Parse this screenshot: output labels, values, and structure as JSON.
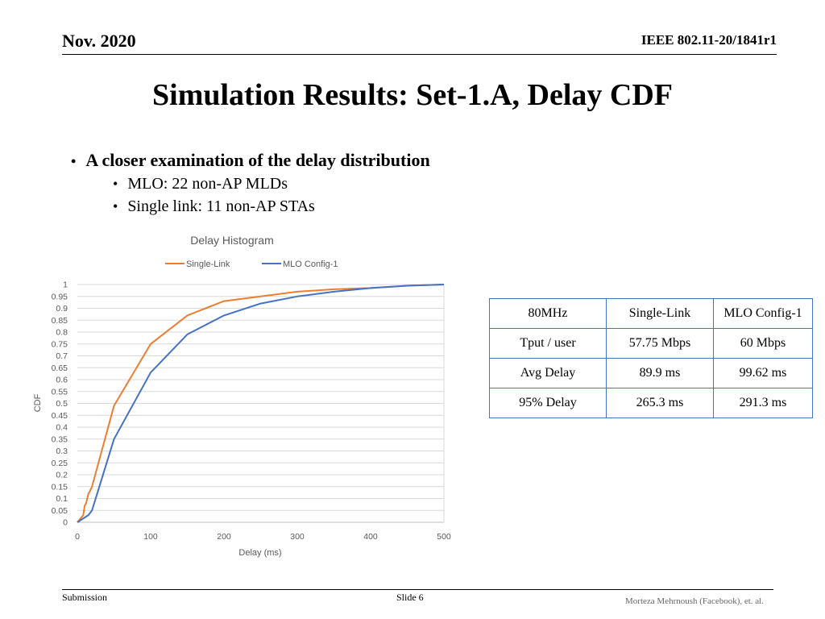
{
  "header": {
    "date": "Nov. 2020",
    "doc_id": "IEEE 802.11-20/1841r1"
  },
  "title": "Simulation Results: Set-1.A, Delay CDF",
  "bullets": {
    "main": "A closer examination of the delay distribution",
    "sub": [
      "MLO: 22 non-AP MLDs",
      "Single link: 11 non-AP STAs"
    ]
  },
  "chart_data": {
    "type": "line",
    "title": "Delay Histogram",
    "xlabel": "Delay (ms)",
    "ylabel": "CDF",
    "xlim": [
      0,
      500
    ],
    "ylim": [
      0,
      1
    ],
    "xticks": [
      0,
      100,
      200,
      300,
      400,
      500
    ],
    "yticks": [
      0,
      0.05,
      0.1,
      0.15,
      0.2,
      0.25,
      0.3,
      0.35,
      0.4,
      0.45,
      0.5,
      0.55,
      0.6,
      0.65,
      0.7,
      0.75,
      0.8,
      0.85,
      0.9,
      0.95,
      1
    ],
    "grid": true,
    "legend_position": "top",
    "series": [
      {
        "name": "Single-Link",
        "color": "#ed7d31",
        "x": [
          0,
          8,
          10,
          12,
          15,
          17,
          20,
          50,
          100,
          150,
          200,
          250,
          300,
          350,
          400,
          450,
          500
        ],
        "y": [
          0,
          0.03,
          0.07,
          0.08,
          0.12,
          0.13,
          0.15,
          0.49,
          0.75,
          0.87,
          0.93,
          0.95,
          0.97,
          0.98,
          0.985,
          0.995,
          1.0
        ]
      },
      {
        "name": "MLO Config-1",
        "color": "#4472c4",
        "x": [
          0,
          10,
          15,
          20,
          50,
          100,
          150,
          200,
          250,
          300,
          350,
          400,
          450,
          500
        ],
        "y": [
          0,
          0.02,
          0.03,
          0.05,
          0.35,
          0.63,
          0.79,
          0.87,
          0.92,
          0.95,
          0.97,
          0.985,
          0.995,
          1.0
        ]
      }
    ]
  },
  "table": {
    "header": [
      "80MHz",
      "Single-Link",
      "MLO Config-1"
    ],
    "rows": [
      [
        "Tput / user",
        "57.75 Mbps",
        "60 Mbps"
      ],
      [
        "Avg Delay",
        "89.9 ms",
        "99.62 ms"
      ],
      [
        "95% Delay",
        "265.3 ms",
        "291.3 ms"
      ]
    ]
  },
  "footer": {
    "left": "Submission",
    "center": "Slide 6",
    "right": "Morteza Mehrnoush (Facebook), et. al."
  }
}
